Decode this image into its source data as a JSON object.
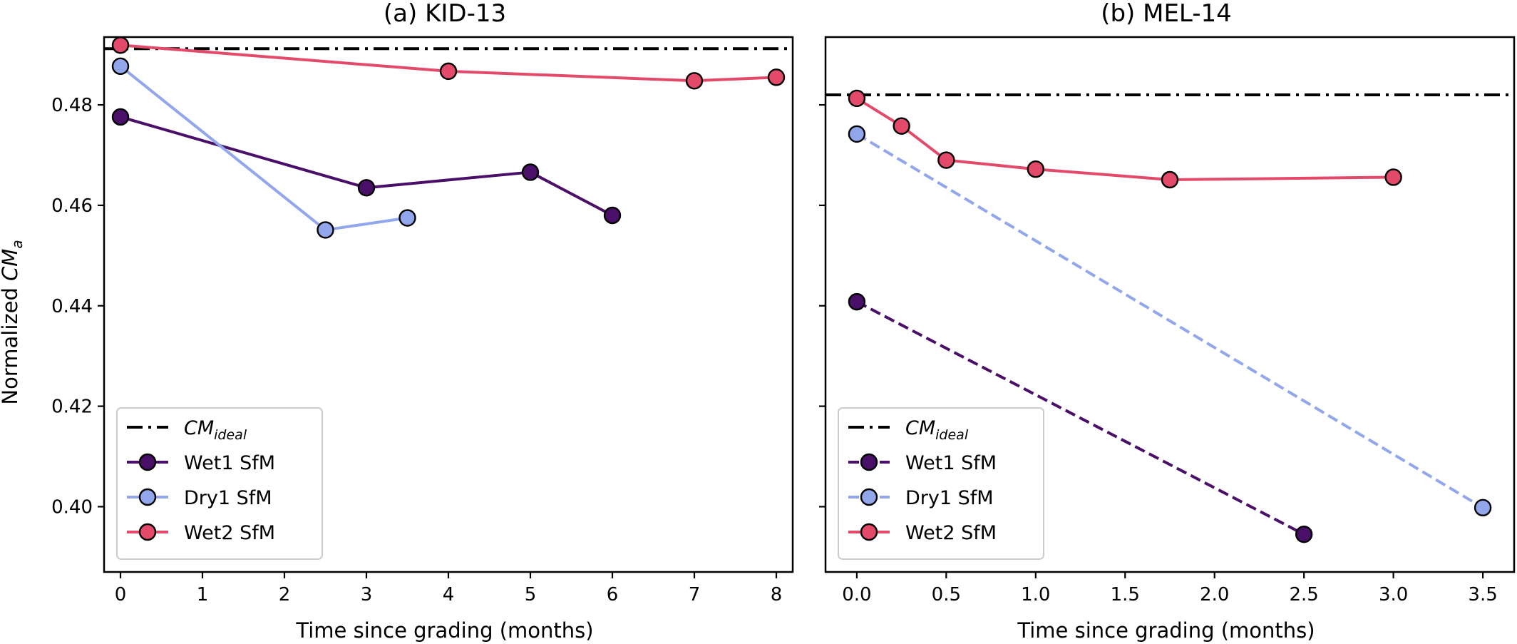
{
  "figure": {
    "ylabel_prefix": "Normalized ",
    "ylabel_symbol": "CM",
    "ylabel_sub": "a"
  },
  "colors": {
    "wet1": "#4a0f68",
    "dry1": "#92a6ec",
    "wet2": "#e34a6a",
    "ideal": "#000000",
    "axis": "#000000"
  },
  "chart_data": [
    {
      "type": "line",
      "title": "(a) KID-13",
      "xlabel": "Time since grading (months)",
      "ylabel": "Normalized CM_a",
      "xlim": [
        -0.2,
        8.2
      ],
      "ylim": [
        0.387,
        0.4935
      ],
      "xticks": [
        0,
        1,
        2,
        3,
        4,
        5,
        6,
        7,
        8
      ],
      "xtick_labels": [
        "0",
        "1",
        "2",
        "3",
        "4",
        "5",
        "6",
        "7",
        "8"
      ],
      "yticks": [
        0.4,
        0.42,
        0.44,
        0.46,
        0.48
      ],
      "ytick_labels": [
        "0.40",
        "0.42",
        "0.44",
        "0.46",
        "0.48"
      ],
      "grid": false,
      "legend_position": "bottom-left",
      "reference_line": {
        "label_symbol": "CM",
        "label_sub": "ideal",
        "y": 0.4912,
        "style": "dashdot"
      },
      "series": [
        {
          "name": "Wet1 SfM",
          "color_key": "wet1",
          "style": "solid",
          "x": [
            0,
            3,
            5,
            6
          ],
          "y": [
            0.4776,
            0.4635,
            0.4666,
            0.458
          ]
        },
        {
          "name": "Dry1 SfM",
          "color_key": "dry1",
          "style": "solid",
          "x": [
            0,
            2.5,
            3.5
          ],
          "y": [
            0.4877,
            0.4551,
            0.4575
          ]
        },
        {
          "name": "Wet2 SfM",
          "color_key": "wet2",
          "style": "solid",
          "x": [
            0,
            4,
            7,
            8
          ],
          "y": [
            0.4919,
            0.4867,
            0.4848,
            0.4855
          ]
        }
      ]
    },
    {
      "type": "line",
      "title": "(b) MEL-14",
      "xlabel": "Time since grading (months)",
      "xlim": [
        -0.175,
        3.675
      ],
      "ylim": [
        0.387,
        0.4935
      ],
      "xticks": [
        0,
        0.5,
        1,
        1.5,
        2,
        2.5,
        3,
        3.5
      ],
      "xtick_labels": [
        "0.0",
        "0.5",
        "1.0",
        "1.5",
        "2.0",
        "2.5",
        "3.0",
        "3.5"
      ],
      "yticks": [
        0.4,
        0.42,
        0.44,
        0.46,
        0.48
      ],
      "ytick_labels": [],
      "grid": false,
      "legend_position": "bottom-left",
      "reference_line": {
        "label_symbol": "CM",
        "label_sub": "ideal",
        "y": 0.482,
        "style": "dashdot"
      },
      "series": [
        {
          "name": "Wet1 SfM",
          "color_key": "wet1",
          "style": "dashed",
          "x": [
            0,
            2.5
          ],
          "y": [
            0.4408,
            0.3945
          ]
        },
        {
          "name": "Dry1 SfM",
          "color_key": "dry1",
          "style": "dashed",
          "x": [
            0,
            3.5
          ],
          "y": [
            0.4742,
            0.3998
          ]
        },
        {
          "name": "Wet2 SfM",
          "color_key": "wet2",
          "style": "solid",
          "x": [
            0,
            0.25,
            0.5,
            1,
            1.75,
            3
          ],
          "y": [
            0.4813,
            0.4758,
            0.469,
            0.4672,
            0.4651,
            0.4656
          ]
        }
      ]
    }
  ]
}
